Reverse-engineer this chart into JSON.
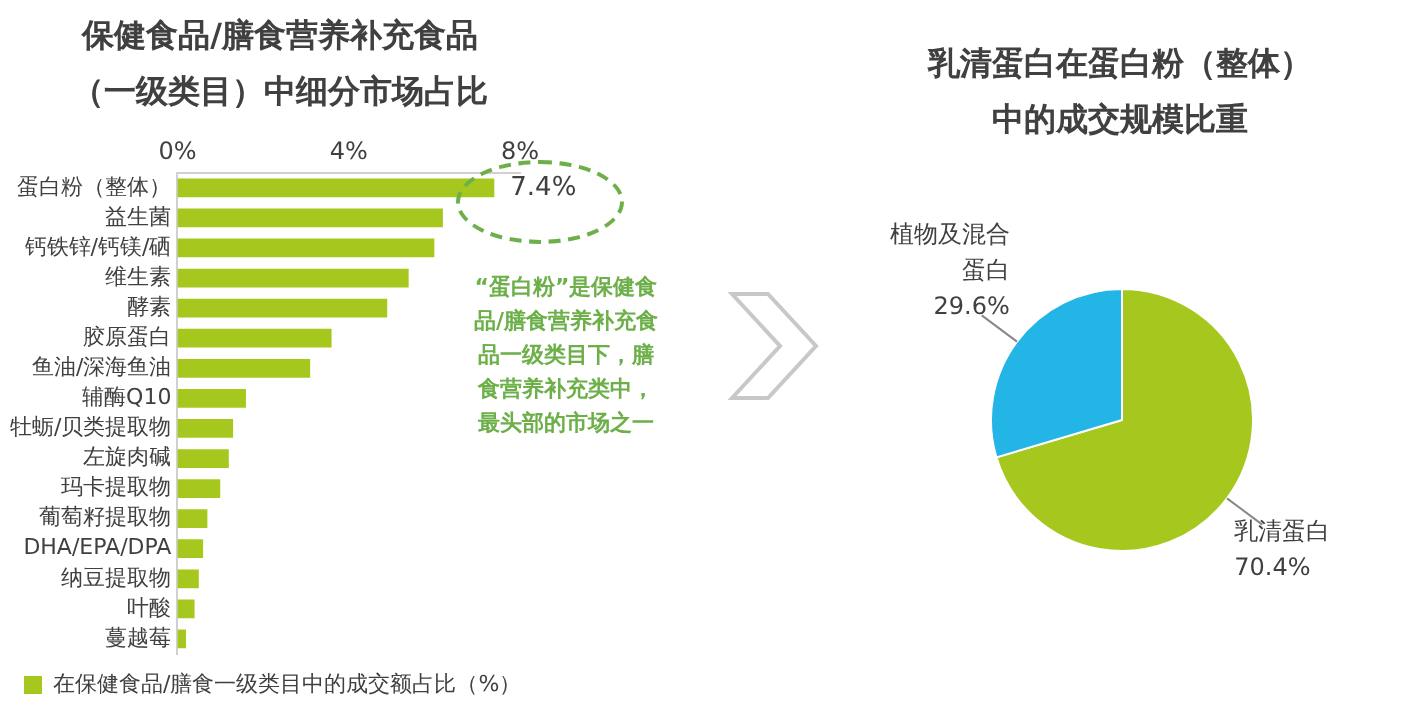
{
  "chart_data": [
    {
      "type": "bar",
      "title": "保健食品/膳食营养补充食品（一级类目）中细分市场占比",
      "orientation": "horizontal",
      "categories": [
        "蛋白粉（整体）",
        "益生菌",
        "钙铁锌/钙镁/硒",
        "维生素",
        "酵素",
        "胶原蛋白",
        "鱼油/深海鱼油",
        "辅酶Q10",
        "牡蛎/贝类提取物",
        "左旋肉碱",
        "玛卡提取物",
        "葡萄籽提取物",
        "DHA/EPA/DPA",
        "纳豆提取物",
        "叶酸",
        "蔓越莓"
      ],
      "series": [
        {
          "name": "在保健食品/膳食一级类目中的成交额占比（%）",
          "color": "#a6c81e",
          "values": [
            7.4,
            6.2,
            6.0,
            5.4,
            4.9,
            3.6,
            3.1,
            1.6,
            1.3,
            1.2,
            1.0,
            0.7,
            0.6,
            0.5,
            0.4,
            0.2
          ],
          "value_labels": [
            "7.4%",
            null,
            null,
            null,
            null,
            null,
            null,
            null,
            null,
            null,
            null,
            null,
            null,
            null,
            null,
            null
          ]
        }
      ],
      "xlim": [
        0,
        8
      ],
      "xticks": [
        {
          "value": 0,
          "label": "0%"
        },
        {
          "value": 4,
          "label": "4%"
        },
        {
          "value": 8,
          "label": "8%"
        }
      ],
      "grid": false,
      "legend": "bottom",
      "annotations": [
        "“蛋白粉”是保健食品/膳食营养补充食品一级类目下，膳食营养补充类中，最头部的市场之一"
      ]
    },
    {
      "type": "pie",
      "title": "乳清蛋白在蛋白粉（整体）中的成交规模比重",
      "categories": [
        "乳清蛋白",
        "植物及混合蛋白"
      ],
      "values": [
        70.4,
        29.6
      ],
      "colors": [
        "#a6c81e",
        "#22b5e6"
      ],
      "value_labels": [
        "70.4%",
        "29.6%"
      ],
      "legend": false
    }
  ]
}
